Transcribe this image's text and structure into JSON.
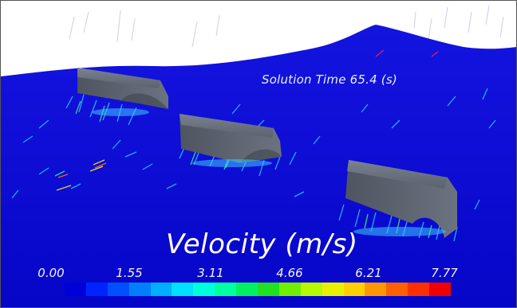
{
  "scene": {
    "solution_time_label": "Solution Time 65.4 (s)",
    "legend": {
      "title": "Velocity (m/s)",
      "ticks": [
        "0.00",
        "1.55",
        "3.11",
        "4.66",
        "6.21",
        "7.77"
      ],
      "colors": [
        "#0000d8",
        "#0024ff",
        "#0050ff",
        "#0080ff",
        "#00b0ff",
        "#00e0ff",
        "#00ffd8",
        "#00ffa0",
        "#00f060",
        "#20e020",
        "#70f000",
        "#b8f800",
        "#e8f000",
        "#ffd000",
        "#ff9800",
        "#ff6000",
        "#ff3000",
        "#f00000"
      ]
    },
    "colors": {
      "background_top": "#ffffff",
      "surface": "#0b0dd6",
      "body": "#5e6672",
      "text": "#ffffff"
    }
  }
}
